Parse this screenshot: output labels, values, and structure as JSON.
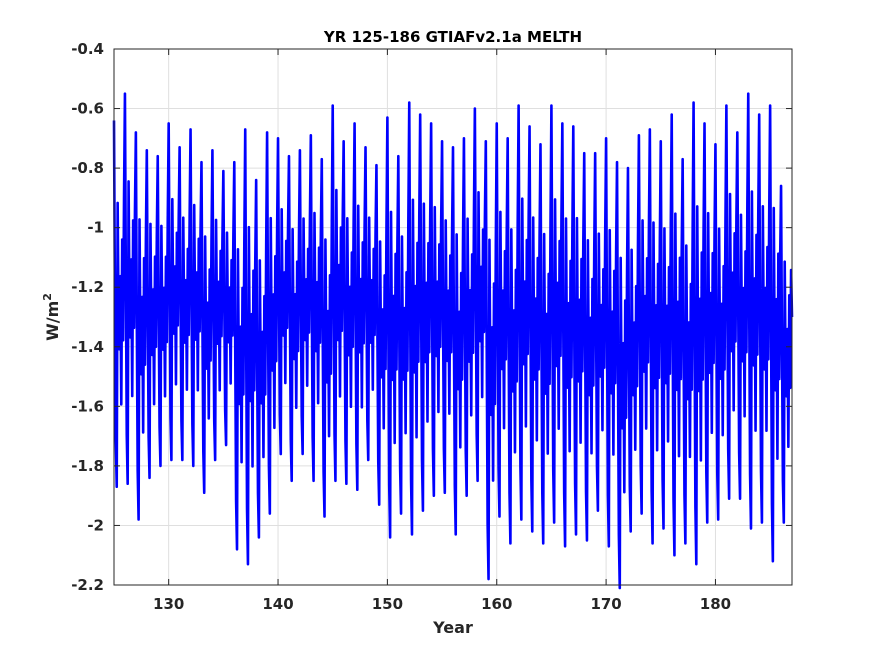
{
  "chart_data": {
    "type": "line",
    "title": "YR 125-186 GTIAFv2.1a MELTH",
    "xlabel": "Year",
    "ylabel_base": "W/m",
    "ylabel_sup": "2",
    "xlim": [
      125,
      187
    ],
    "ylim": [
      -2.2,
      -0.4
    ],
    "xticks": [
      130,
      140,
      150,
      160,
      170,
      180
    ],
    "xtick_labels": [
      "130",
      "140",
      "150",
      "160",
      "170",
      "180"
    ],
    "yticks": [
      -2.2,
      -2,
      -1.8,
      -1.6,
      -1.4,
      -1.2,
      -1,
      -0.8,
      -0.6,
      -0.4
    ],
    "ytick_labels": [
      "-2.2",
      "-2",
      "-1.8",
      "-1.6",
      "-1.4",
      "-1.2",
      "-1",
      "-0.8",
      "-0.6",
      "-0.4"
    ],
    "grid": true,
    "series": [
      {
        "color": "#0000ff",
        "sampling": "monthly",
        "x_start": 125,
        "annual_peaks": [
          -0.64,
          -0.55,
          -0.68,
          -0.74,
          -0.76,
          -0.65,
          -0.73,
          -0.67,
          -0.78,
          -0.74,
          -0.81,
          -0.78,
          -0.67,
          -0.84,
          -0.68,
          -0.7,
          -0.76,
          -0.74,
          -0.69,
          -0.77,
          -0.59,
          -0.71,
          -0.65,
          -0.73,
          -0.79,
          -0.63,
          -0.76,
          -0.58,
          -0.62,
          -0.65,
          -0.71,
          -0.73,
          -0.7,
          -0.6,
          -0.71,
          -0.65,
          -0.7,
          -0.59,
          -0.66,
          -0.72,
          -0.59,
          -0.65,
          -0.66,
          -0.75,
          -0.75,
          -0.7,
          -0.78,
          -0.8,
          -0.69,
          -0.67,
          -0.71,
          -0.62,
          -0.77,
          -0.58,
          -0.65,
          -0.72,
          -0.59,
          -0.68,
          -0.55,
          -0.62,
          -0.59,
          -0.86
        ],
        "annual_troughs": [
          -1.87,
          -1.86,
          -1.98,
          -1.84,
          -1.8,
          -1.78,
          -1.78,
          -1.8,
          -1.89,
          -1.78,
          -1.73,
          -2.08,
          -2.13,
          -2.04,
          -1.96,
          -1.76,
          -1.85,
          -1.76,
          -1.85,
          -1.97,
          -1.85,
          -1.86,
          -1.88,
          -1.78,
          -1.93,
          -2.04,
          -1.96,
          -2.03,
          -1.95,
          -1.9,
          -1.89,
          -2.03,
          -1.9,
          -1.85,
          -2.18,
          -1.97,
          -2.06,
          -1.98,
          -2.02,
          -2.06,
          -1.99,
          -2.07,
          -2.03,
          -2.05,
          -1.95,
          -2.07,
          -2.21,
          -2.02,
          -1.96,
          -2.06,
          -2.01,
          -2.1,
          -2.06,
          -2.13,
          -1.99,
          -1.98,
          -1.91,
          -1.91,
          -2.01,
          -1.99,
          -2.12,
          -1.99
        ],
        "end_value": -1.3
      }
    ]
  }
}
